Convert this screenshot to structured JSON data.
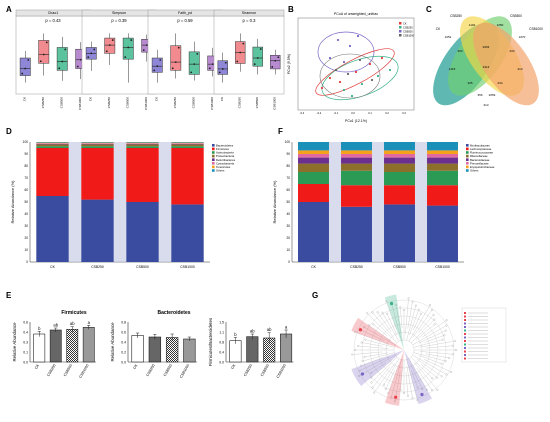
{
  "panel_letters": {
    "a": "A",
    "b": "B",
    "c": "C",
    "d": "D",
    "e": "E",
    "f": "F",
    "g": "G"
  },
  "colors": {
    "CK": "#7a63c6",
    "CSB250": "#e8424c",
    "CSB500": "#39b38a",
    "CSB1000": "#9b5fb5",
    "box_fill": [
      "#8e86d6",
      "#f28b8f",
      "#5cc39f",
      "#b88ad0"
    ],
    "stack": [
      "#3a4ca0",
      "#f01b18",
      "#2a9a55",
      "#8b6f2a",
      "#6b2f8e",
      "#e06aa0",
      "#f4a11e",
      "#1a8fb7"
    ],
    "bar_gray": [
      "#ffffff",
      "#777777",
      "#bbbbbb",
      "#999999"
    ],
    "pcoa": [
      "#e03c3c",
      "#39b38a",
      "#7a63c6",
      "#666666"
    ]
  },
  "chart_data": [
    {
      "panel": "A",
      "type": "box",
      "categories": [
        "CK",
        "CSB250",
        "CSB500",
        "CSB1000"
      ],
      "subplots": [
        {
          "title": "Chao1",
          "stat": "p = 0.43",
          "boxes": [
            [
              540,
              560,
              580,
              610,
              630
            ],
            [
              560,
              595,
              620,
              660,
              680
            ],
            [
              545,
              575,
              600,
              640,
              670
            ],
            [
              550,
              580,
              605,
              635,
              655
            ]
          ]
        },
        {
          "title": "Simpson",
          "stat": "p = 0.39",
          "boxes": [
            [
              0.93,
              0.94,
              0.945,
              0.95,
              0.955
            ],
            [
              0.935,
              0.945,
              0.952,
              0.958,
              0.962
            ],
            [
              0.92,
              0.94,
              0.95,
              0.958,
              0.962
            ],
            [
              0.938,
              0.946,
              0.952,
              0.957,
              0.961
            ]
          ]
        },
        {
          "title": "Faith_pd",
          "stat": "p = 0.59",
          "boxes": [
            [
              40,
              45,
              48,
              52,
              56
            ],
            [
              42,
              46,
              50,
              58,
              64
            ],
            [
              41,
              44,
              49,
              55,
              60
            ],
            [
              43,
              46,
              49,
              53,
              57
            ]
          ]
        },
        {
          "title": "Shannon",
          "stat": "p = 0.3",
          "boxes": [
            [
              6.5,
              6.8,
              7.0,
              7.3,
              7.6
            ],
            [
              6.9,
              7.2,
              7.6,
              8.0,
              8.3
            ],
            [
              6.8,
              7.1,
              7.4,
              7.8,
              8.1
            ],
            [
              6.8,
              7.0,
              7.3,
              7.5,
              7.7
            ]
          ]
        }
      ]
    },
    {
      "panel": "B",
      "type": "scatter",
      "title": "PCoA of unweighted_unifrac",
      "xlabel": "PCo1 (12.1%)",
      "ylabel": "PCo2 (9.5%)",
      "legend": [
        "CK",
        "CSB250",
        "CSB500",
        "CSB1000"
      ]
    },
    {
      "panel": "C",
      "type": "venn",
      "sets": [
        "CSB250",
        "CSB500",
        "CK",
        "CSB1000"
      ],
      "regions": [
        "1052",
        "1104",
        "1050",
        "1070",
        "303",
        "2063",
        "233",
        "1415",
        "3413",
        "413",
        "335",
        "234",
        "356",
        "2059",
        "313"
      ]
    },
    {
      "panel": "D",
      "type": "bar",
      "categories": [
        "CK",
        "CSB250",
        "CSB500",
        "CSB1000"
      ],
      "ylabel": "Relative Abundance (%)",
      "ylim": [
        0,
        100
      ],
      "series": [
        {
          "name": "Bacteroidetes",
          "values": [
            55,
            52,
            50,
            48
          ]
        },
        {
          "name": "Firmicutes",
          "values": [
            40,
            43,
            45,
            47
          ]
        },
        {
          "name": "Actinobacteria",
          "values": [
            1.5,
            1.5,
            1.5,
            1.5
          ]
        },
        {
          "name": "Proteobacteria",
          "values": [
            1.5,
            1.5,
            1.5,
            1.5
          ]
        },
        {
          "name": "Deferribacteres",
          "values": [
            0.5,
            0.5,
            0.5,
            0.5
          ]
        },
        {
          "name": "Cyanobacteria",
          "values": [
            0.5,
            0.5,
            0.5,
            0.5
          ]
        },
        {
          "name": "Tenericutes",
          "values": [
            0.5,
            0.5,
            0.5,
            0.5
          ]
        },
        {
          "name": "Others",
          "values": [
            0.5,
            0.5,
            0.5,
            0.5
          ]
        }
      ]
    },
    {
      "panel": "F",
      "type": "bar",
      "categories": [
        "CK",
        "CSB250",
        "CSB500",
        "CSB1000"
      ],
      "ylabel": "Relative Abundance (%)",
      "ylim": [
        0,
        100
      ],
      "series": [
        {
          "name": "Muribaculaceae",
          "values": [
            50,
            46,
            48,
            47
          ]
        },
        {
          "name": "Lachnospiraceae",
          "values": [
            15,
            18,
            16,
            17
          ]
        },
        {
          "name": "Ruminococcaceae",
          "values": [
            10,
            12,
            11,
            12
          ]
        },
        {
          "name": "Rikenellaceae",
          "values": [
            7,
            6,
            7,
            6
          ]
        },
        {
          "name": "Bacteroidaceae",
          "values": [
            5,
            5,
            5,
            5
          ]
        },
        {
          "name": "Prevotellaceae",
          "values": [
            3,
            3,
            3,
            3
          ]
        },
        {
          "name": "Erysipelotrichaceae",
          "values": [
            3,
            3,
            3,
            3
          ]
        },
        {
          "name": "Others",
          "values": [
            7,
            7,
            7,
            7
          ]
        }
      ]
    },
    {
      "panel": "E",
      "type": "bar",
      "subplots": [
        {
          "title": "Firmicutes",
          "ylabel": "Relative Abundance",
          "ylim": [
            0,
            0.6
          ],
          "categories": [
            "CK",
            "CSB250",
            "CSB500",
            "CSB1000"
          ],
          "values": [
            0.42,
            0.48,
            0.49,
            0.52
          ],
          "err": [
            0.04,
            0.03,
            0.04,
            0.03
          ],
          "labels": [
            "b",
            "ab",
            "ab",
            "a"
          ]
        },
        {
          "title": "Bacteroidetes",
          "ylabel": "Relative Abundance",
          "ylim": [
            0,
            0.8
          ],
          "categories": [
            "CK",
            "CSB250",
            "CSB500",
            "CSB1000"
          ],
          "values": [
            0.53,
            0.5,
            0.49,
            0.46
          ],
          "err": [
            0.05,
            0.05,
            0.07,
            0.04
          ],
          "labels": [
            "",
            "",
            "",
            ""
          ]
        },
        {
          "title": "",
          "ylabel": "Firmicutes/Bacteroidetes",
          "ylim": [
            0,
            1.5
          ],
          "categories": [
            "CK",
            "CSB250",
            "CSB500",
            "CSB1000"
          ],
          "values": [
            0.8,
            0.95,
            0.9,
            1.05
          ],
          "err": [
            0.12,
            0.1,
            0.2,
            0.15
          ],
          "labels": [
            "b",
            "ab",
            "ab",
            "a"
          ]
        }
      ]
    }
  ]
}
